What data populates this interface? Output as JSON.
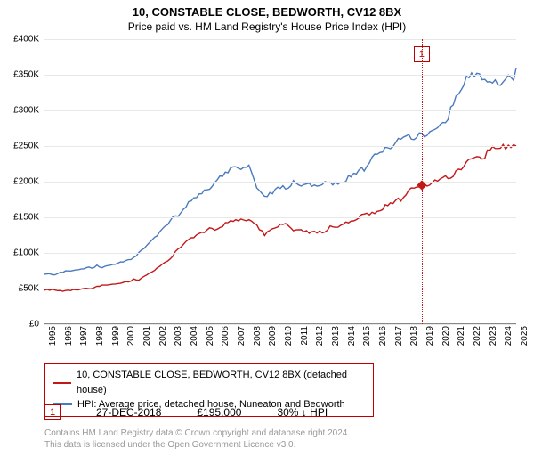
{
  "title": "10, CONSTABLE CLOSE, BEDWORTH, CV12 8BX",
  "subtitle": "Price paid vs. HM Land Registry's House Price Index (HPI)",
  "chart": {
    "type": "line",
    "x": {
      "min": 1995,
      "max": 2025,
      "ticks": [
        1995,
        1996,
        1997,
        1998,
        1999,
        2000,
        2001,
        2002,
        2003,
        2004,
        2005,
        2006,
        2007,
        2008,
        2009,
        2010,
        2011,
        2012,
        2013,
        2014,
        2015,
        2016,
        2017,
        2018,
        2019,
        2020,
        2021,
        2022,
        2023,
        2024,
        2025
      ]
    },
    "y": {
      "min": 0,
      "max": 400000,
      "ticks": [
        0,
        50000,
        100000,
        150000,
        200000,
        250000,
        300000,
        350000,
        400000
      ],
      "tick_labels": [
        "£0",
        "£50K",
        "£100K",
        "£150K",
        "£200K",
        "£250K",
        "£300K",
        "£350K",
        "£400K"
      ]
    },
    "series": [
      {
        "name": "property",
        "label": "10, CONSTABLE CLOSE, BEDWORTH, CV12 8BX (detached house)",
        "color": "#c21818",
        "stroke_width": 1.4,
        "x": [
          1995,
          1996,
          1997,
          1998,
          1999,
          2000,
          2001,
          2002,
          2003,
          2004,
          2005,
          2006,
          2007,
          2008,
          2009,
          2010,
          2011,
          2012,
          2013,
          2014,
          2015,
          2016,
          2017,
          2018,
          2019,
          2020,
          2021,
          2022,
          2023,
          2024,
          2025
        ],
        "y": [
          48000,
          48500,
          50000,
          52000,
          55000,
          58000,
          65000,
          78000,
          95000,
          115000,
          128000,
          140000,
          150000,
          152000,
          125000,
          140000,
          138000,
          134000,
          135000,
          140000,
          150000,
          162000,
          175000,
          185000,
          195000,
          200000,
          215000,
          240000,
          245000,
          248000,
          250000
        ]
      },
      {
        "name": "hpi",
        "label": "HPI: Average price, detached house, Nuneaton and Bedworth",
        "color": "#4a7abd",
        "stroke_width": 1.3,
        "x": [
          1995,
          1996,
          1997,
          1998,
          1999,
          2000,
          2001,
          2002,
          2003,
          2004,
          2005,
          2006,
          2007,
          2008,
          2009,
          2010,
          2011,
          2012,
          2013,
          2014,
          2015,
          2016,
          2017,
          2018,
          2019,
          2020,
          2021,
          2022,
          2023,
          2024,
          2025
        ],
        "y": [
          72000,
          72500,
          76000,
          80000,
          85000,
          90000,
          100000,
          120000,
          145000,
          172000,
          190000,
          205000,
          218000,
          220000,
          185000,
          200000,
          198000,
          195000,
          198000,
          208000,
          222000,
          235000,
          250000,
          263000,
          275000,
          285000,
          310000,
          350000,
          348000,
          352000,
          360000
        ]
      }
    ],
    "markers": [
      {
        "num": "1",
        "x": 2018.99,
        "y": 195000,
        "color": "#c21818"
      }
    ],
    "marker_line_x": 2018.99,
    "grid_color": "#e8e8e8",
    "background_color": "#ffffff"
  },
  "legend": {
    "items": [
      {
        "color": "#c21818",
        "label": "10, CONSTABLE CLOSE, BEDWORTH, CV12 8BX (detached house)"
      },
      {
        "color": "#4a7abd",
        "label": "HPI: Average price, detached house, Nuneaton and Bedworth"
      }
    ]
  },
  "data_row": {
    "marker_num": "1",
    "date": "27-DEC-2018",
    "price": "£195,000",
    "pct": "30%",
    "arrow": "↓",
    "suffix": "HPI"
  },
  "footer": {
    "line1": "Contains HM Land Registry data © Crown copyright and database right 2024.",
    "line2": "This data is licensed under the Open Government Licence v3.0."
  }
}
